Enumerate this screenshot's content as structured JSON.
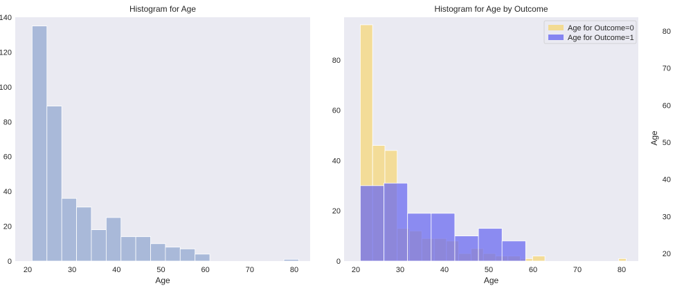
{
  "chart_data": [
    {
      "type": "bar",
      "title": "Histogram for Age",
      "xlabel": "Age",
      "ylabel": "",
      "xlim": [
        18,
        84
      ],
      "ylim": [
        0,
        140
      ],
      "xticks": [
        20,
        30,
        40,
        50,
        60,
        70,
        80
      ],
      "yticks": [
        0,
        20,
        40,
        60,
        80,
        100,
        120,
        140
      ],
      "grid": false,
      "bin_edges": [
        21,
        24.33,
        27.67,
        31,
        34.33,
        37.67,
        41,
        44.33,
        47.67,
        51,
        54.33,
        57.67,
        61,
        64.33,
        67.67,
        71,
        74.33,
        77.67,
        81
      ],
      "series": [
        {
          "values": [
            135,
            89,
            36,
            31,
            18,
            25,
            14,
            14,
            10,
            8,
            7,
            4,
            0,
            0,
            0,
            0,
            0,
            1
          ],
          "color": "#a9b9d9"
        }
      ]
    },
    {
      "type": "bar",
      "title": "Histogram for Age by Outcome",
      "xlabel": "Age",
      "ylabel": "",
      "xlim": [
        18,
        84
      ],
      "ylim": [
        0,
        97
      ],
      "xticks": [
        20,
        30,
        40,
        50,
        60,
        70,
        80
      ],
      "yticks": [
        0,
        20,
        40,
        60,
        80
      ],
      "grid": false,
      "legend": "top-right",
      "series": [
        {
          "name": "Age for Outcome=0",
          "color": "#f5d77a",
          "bin_edges": [
            21,
            23.78,
            26.56,
            29.33,
            32.11,
            34.89,
            37.67,
            40.44,
            43.22,
            46,
            48.78,
            51.56,
            54.33,
            57.11,
            59.89,
            62.67,
            65.44,
            68.22,
            71,
            73.78,
            76.56,
            79.33,
            81
          ],
          "values": [
            94,
            46,
            44,
            13,
            12,
            9,
            9,
            8,
            3,
            5,
            3,
            2,
            2,
            1,
            2,
            0,
            0,
            0,
            0,
            0,
            0,
            1
          ]
        },
        {
          "name": "Age for Outcome=1",
          "color": "#6b6bf0",
          "bin_edges": [
            21,
            26.33,
            31.67,
            37,
            42.33,
            47.67,
            53,
            58.33
          ],
          "values": [
            30,
            31,
            19,
            19,
            10,
            13,
            8
          ]
        }
      ]
    },
    {
      "type": "box",
      "title": "",
      "xlabel": "",
      "ylabel": "Age",
      "yticks": [
        20,
        30,
        40,
        50,
        60,
        70,
        80
      ],
      "ylim": [
        17,
        83
      ]
    }
  ]
}
